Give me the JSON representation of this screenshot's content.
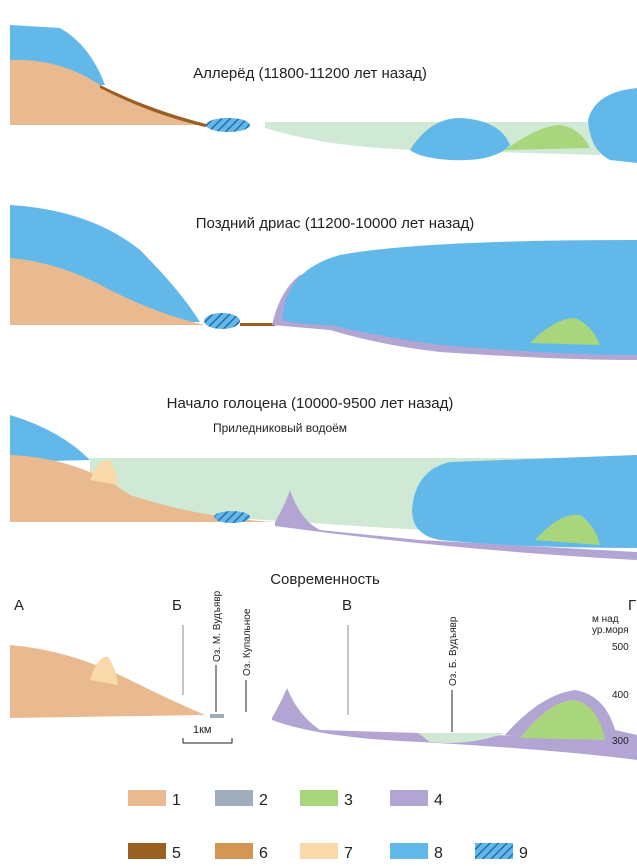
{
  "panels": [
    {
      "title": "Аллерёд (11800-11200 лет назад)"
    },
    {
      "title": "Поздний дриас (11200-10000 лет назад)"
    },
    {
      "title": "Начало голоцена (10000-9500 лет назад)",
      "note": "Приледниковый водоём"
    },
    {
      "title": "Современность"
    }
  ],
  "section_points": [
    "А",
    "Б",
    "В",
    "Г"
  ],
  "lakes": [
    "Оз. М. Вудъявр",
    "Оз. Купальное",
    "Оз. Б. Вудъявр"
  ],
  "scale_bar": "1км",
  "elevation": {
    "unit_lines": [
      "м над",
      "ур.моря"
    ],
    "ticks": [
      500,
      400,
      300
    ]
  },
  "legend": [
    {
      "label": "1",
      "color": "#e9b98f"
    },
    {
      "label": "2",
      "color": "#9fadbd"
    },
    {
      "label": "3",
      "color": "#a9d67c"
    },
    {
      "label": "4",
      "color": "#b3a5d3"
    },
    {
      "label": "5",
      "color": "#9a5f22"
    },
    {
      "label": "6",
      "color": "#d39654"
    },
    {
      "label": "7",
      "color": "#f9d9a9"
    },
    {
      "label": "8",
      "color": "#62b9e9"
    },
    {
      "label": "9",
      "color": "hatch"
    }
  ]
}
